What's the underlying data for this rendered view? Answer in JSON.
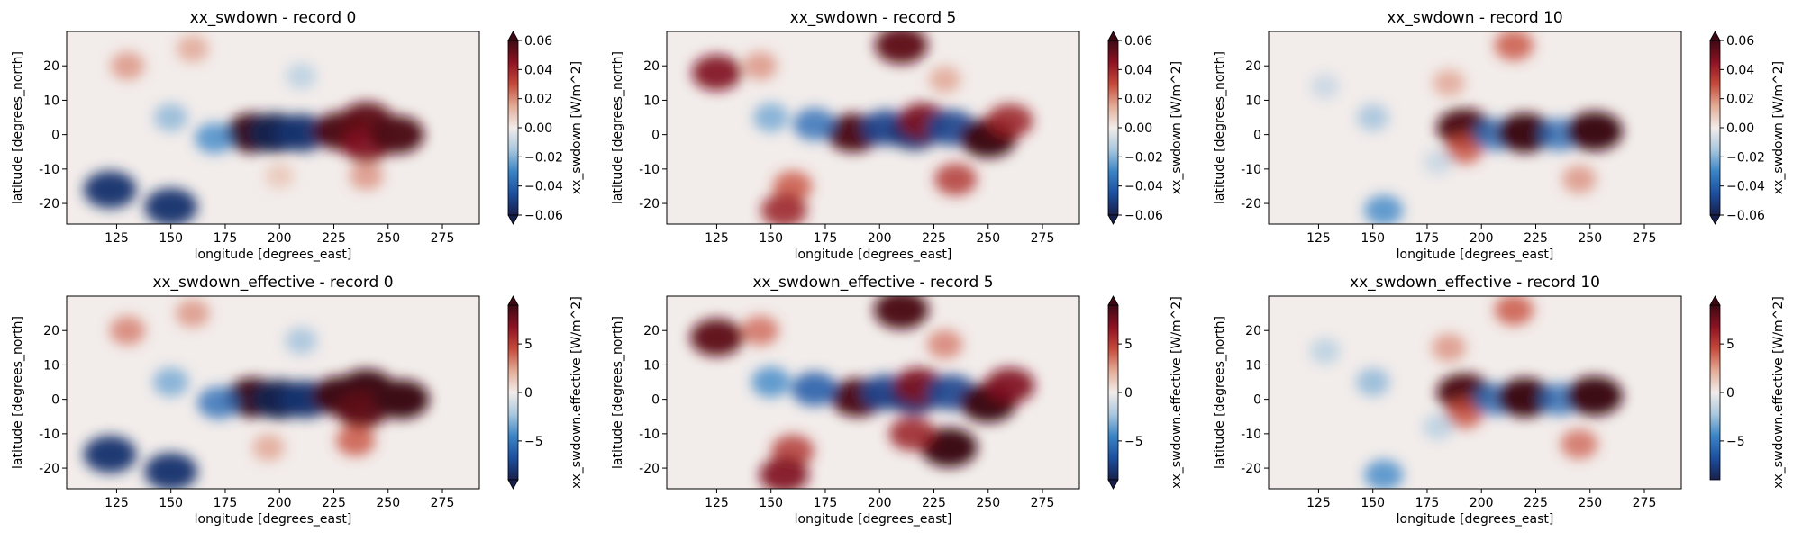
{
  "figure": {
    "colormap": {
      "name": "balance",
      "stops": [
        "#17204c",
        "#1c4fa0",
        "#3a84c6",
        "#a9c8df",
        "#f2ecea",
        "#e3ab95",
        "#c64a3a",
        "#8e1222",
        "#3d0913"
      ],
      "land_color": "#f2ecea"
    }
  },
  "chart_data": [
    {
      "type": "heatmap",
      "title": "xx_swdown - record 0",
      "xlabel": "longitude [degrees_east]",
      "ylabel": "latitude [degrees_north]",
      "xlim": [
        102,
        292
      ],
      "ylim": [
        -26,
        30
      ],
      "xticks": [
        125,
        150,
        175,
        200,
        225,
        250,
        275
      ],
      "yticks": [
        -20,
        -10,
        0,
        10,
        20
      ],
      "colorbar": {
        "label": "xx_swdown [W/m^2]",
        "vmin": -0.06,
        "vmax": 0.06,
        "ticks": [
          "0.06",
          "0.04",
          "0.02",
          "0.00",
          "−0.02",
          "−0.04",
          "−0.06"
        ],
        "extend": "both"
      },
      "grid": false,
      "features": [
        {
          "lon": 188,
          "lat": 0.5,
          "value": 1.0
        },
        {
          "lon": 198,
          "lat": 0.5,
          "value": -1.0
        },
        {
          "lon": 210,
          "lat": 0.5,
          "value": -0.9
        },
        {
          "lon": 228,
          "lat": 1,
          "value": 0.95
        },
        {
          "lon": 240,
          "lat": 4,
          "value": 0.9
        },
        {
          "lon": 240,
          "lat": -3,
          "value": 0.8
        },
        {
          "lon": 254,
          "lat": 0,
          "value": 0.95
        },
        {
          "lon": 170,
          "lat": -1,
          "value": -0.5
        },
        {
          "lon": 150,
          "lat": 5,
          "value": -0.35
        },
        {
          "lon": 240,
          "lat": -12,
          "value": 0.35
        },
        {
          "lon": 130,
          "lat": 20,
          "value": 0.35
        },
        {
          "lon": 160,
          "lat": 25,
          "value": 0.3
        },
        {
          "lon": 210,
          "lat": 17,
          "value": -0.25
        },
        {
          "lon": 122,
          "lat": -16,
          "value": -0.9
        },
        {
          "lon": 150,
          "lat": -21,
          "value": -0.9
        },
        {
          "lon": 200,
          "lat": -12,
          "value": 0.2
        }
      ]
    },
    {
      "type": "heatmap",
      "title": "xx_swdown - record 5",
      "xlabel": "longitude [degrees_east]",
      "ylabel": "latitude [degrees_north]",
      "xlim": [
        102,
        292
      ],
      "ylim": [
        -26,
        30
      ],
      "xticks": [
        125,
        150,
        175,
        200,
        225,
        250,
        275
      ],
      "yticks": [
        -20,
        -10,
        0,
        10,
        20
      ],
      "colorbar": {
        "label": "xx_swdown [W/m^2]",
        "vmin": -0.06,
        "vmax": 0.06,
        "ticks": [
          "0.06",
          "0.04",
          "0.02",
          "0.00",
          "−0.02",
          "−0.04",
          "−0.06"
        ],
        "extend": "both"
      },
      "grid": false,
      "features": [
        {
          "lon": 188,
          "lat": 0.5,
          "value": 0.95
        },
        {
          "lon": 203,
          "lat": 2,
          "value": -0.8
        },
        {
          "lon": 216,
          "lat": 1,
          "value": -0.9
        },
        {
          "lon": 220,
          "lat": 4,
          "value": 0.8
        },
        {
          "lon": 233,
          "lat": 2,
          "value": -0.8
        },
        {
          "lon": 250,
          "lat": -1,
          "value": 1.0
        },
        {
          "lon": 260,
          "lat": 4,
          "value": 0.7
        },
        {
          "lon": 210,
          "lat": 26,
          "value": 0.9
        },
        {
          "lon": 125,
          "lat": 18,
          "value": 0.8
        },
        {
          "lon": 235,
          "lat": -13,
          "value": 0.6
        },
        {
          "lon": 160,
          "lat": -15,
          "value": 0.5
        },
        {
          "lon": 170,
          "lat": 3,
          "value": -0.6
        },
        {
          "lon": 150,
          "lat": 5,
          "value": -0.4
        },
        {
          "lon": 145,
          "lat": 20,
          "value": 0.35
        },
        {
          "lon": 230,
          "lat": 16,
          "value": 0.3
        },
        {
          "lon": 156,
          "lat": -22,
          "value": 0.7
        }
      ]
    },
    {
      "type": "heatmap",
      "title": "xx_swdown - record 10",
      "xlabel": "longitude [degrees_east]",
      "ylabel": "latitude [degrees_north]",
      "xlim": [
        102,
        292
      ],
      "ylim": [
        -26,
        30
      ],
      "xticks": [
        125,
        150,
        175,
        200,
        225,
        250,
        275
      ],
      "yticks": [
        -20,
        -10,
        0,
        10,
        20
      ],
      "colorbar": {
        "label": "xx_swdown [W/m^2]",
        "vmin": -0.06,
        "vmax": 0.06,
        "ticks": [
          "0.06",
          "0.04",
          "0.02",
          "0.00",
          "−0.02",
          "−0.04",
          "−0.06"
        ],
        "extend": "both"
      },
      "grid": false,
      "features": [
        {
          "lon": 192,
          "lat": 2,
          "value": 0.95
        },
        {
          "lon": 192,
          "lat": -4,
          "value": 0.5
        },
        {
          "lon": 206,
          "lat": 0,
          "value": -0.6
        },
        {
          "lon": 220,
          "lat": 0.5,
          "value": 1.0
        },
        {
          "lon": 236,
          "lat": 0,
          "value": -0.6
        },
        {
          "lon": 252,
          "lat": 1,
          "value": 1.0
        },
        {
          "lon": 215,
          "lat": 26,
          "value": 0.5
        },
        {
          "lon": 185,
          "lat": 15,
          "value": 0.3
        },
        {
          "lon": 245,
          "lat": -13,
          "value": 0.35
        },
        {
          "lon": 150,
          "lat": 5,
          "value": -0.3
        },
        {
          "lon": 180,
          "lat": -8,
          "value": -0.2
        },
        {
          "lon": 128,
          "lat": 14,
          "value": -0.2
        },
        {
          "lon": 155,
          "lat": -22,
          "value": -0.5
        }
      ]
    },
    {
      "type": "heatmap",
      "title": "xx_swdown_effective - record 0",
      "xlabel": "longitude [degrees_east]",
      "ylabel": "latitude [degrees_north]",
      "xlim": [
        102,
        292
      ],
      "ylim": [
        -26,
        30
      ],
      "xticks": [
        125,
        150,
        175,
        200,
        225,
        250,
        275
      ],
      "yticks": [
        -20,
        -10,
        0,
        10,
        20
      ],
      "colorbar": {
        "label": "xx_swdown.effective [W/m^2]",
        "vmin": -9,
        "vmax": 9,
        "ticks": [
          "5",
          "0",
          "−5"
        ],
        "tick_values": [
          5,
          0,
          -5
        ],
        "extend": "both"
      },
      "grid": false,
      "features": [
        {
          "lon": 188,
          "lat": 0.5,
          "value": 1.0
        },
        {
          "lon": 200,
          "lat": 0,
          "value": -1.0
        },
        {
          "lon": 212,
          "lat": 0,
          "value": -0.9
        },
        {
          "lon": 228,
          "lat": 1,
          "value": 1.0
        },
        {
          "lon": 240,
          "lat": 3,
          "value": 1.0
        },
        {
          "lon": 238,
          "lat": -3,
          "value": 0.9
        },
        {
          "lon": 256,
          "lat": 0,
          "value": 1.0
        },
        {
          "lon": 172,
          "lat": -1,
          "value": -0.6
        },
        {
          "lon": 150,
          "lat": 5,
          "value": -0.4
        },
        {
          "lon": 235,
          "lat": -12,
          "value": 0.5
        },
        {
          "lon": 130,
          "lat": 20,
          "value": 0.4
        },
        {
          "lon": 160,
          "lat": 25,
          "value": 0.35
        },
        {
          "lon": 210,
          "lat": 17,
          "value": -0.3
        },
        {
          "lon": 122,
          "lat": -16,
          "value": -0.9
        },
        {
          "lon": 150,
          "lat": -21,
          "value": -0.9
        },
        {
          "lon": 195,
          "lat": -14,
          "value": 0.3
        }
      ]
    },
    {
      "type": "heatmap",
      "title": "xx_swdown_effective - record 5",
      "xlabel": "longitude [degrees_east]",
      "ylabel": "latitude [degrees_north]",
      "xlim": [
        102,
        292
      ],
      "ylim": [
        -26,
        30
      ],
      "xticks": [
        125,
        150,
        175,
        200,
        225,
        250,
        275
      ],
      "yticks": [
        -20,
        -10,
        0,
        10,
        20
      ],
      "colorbar": {
        "label": "xx_swdown.effective [W/m^2]",
        "vmin": -9,
        "vmax": 9,
        "ticks": [
          "5",
          "0",
          "−5"
        ],
        "tick_values": [
          5,
          0,
          -5
        ],
        "extend": "both"
      },
      "grid": false,
      "features": [
        {
          "lon": 190,
          "lat": 0.5,
          "value": 0.95
        },
        {
          "lon": 203,
          "lat": 2,
          "value": -0.8
        },
        {
          "lon": 216,
          "lat": 1,
          "value": -0.9
        },
        {
          "lon": 218,
          "lat": 4,
          "value": 0.8
        },
        {
          "lon": 233,
          "lat": 2,
          "value": -0.8
        },
        {
          "lon": 250,
          "lat": -1,
          "value": 1.0
        },
        {
          "lon": 260,
          "lat": 4,
          "value": 0.8
        },
        {
          "lon": 210,
          "lat": 26,
          "value": 0.95
        },
        {
          "lon": 125,
          "lat": 18,
          "value": 0.9
        },
        {
          "lon": 232,
          "lat": -14,
          "value": 1.0
        },
        {
          "lon": 215,
          "lat": -10,
          "value": 0.7
        },
        {
          "lon": 160,
          "lat": -15,
          "value": 0.6
        },
        {
          "lon": 170,
          "lat": 3,
          "value": -0.7
        },
        {
          "lon": 150,
          "lat": 5,
          "value": -0.5
        },
        {
          "lon": 145,
          "lat": 20,
          "value": 0.45
        },
        {
          "lon": 230,
          "lat": 16,
          "value": 0.4
        },
        {
          "lon": 156,
          "lat": -22,
          "value": 0.8
        }
      ]
    },
    {
      "type": "heatmap",
      "title": "xx_swdown_effective - record 10",
      "xlabel": "longitude [degrees_east]",
      "ylabel": "latitude [degrees_north]",
      "xlim": [
        102,
        292
      ],
      "ylim": [
        -26,
        30
      ],
      "xticks": [
        125,
        150,
        175,
        200,
        225,
        250,
        275
      ],
      "yticks": [
        -20,
        -10,
        0,
        10,
        20
      ],
      "colorbar": {
        "label": "xx_swdown.effective [W/m^2]",
        "vmin": -9,
        "vmax": 9,
        "ticks": [
          "5",
          "0",
          "−5"
        ],
        "tick_values": [
          5,
          0,
          -5
        ],
        "extend": "max"
      },
      "grid": false,
      "features": [
        {
          "lon": 192,
          "lat": 2,
          "value": 0.95
        },
        {
          "lon": 192,
          "lat": -4,
          "value": 0.5
        },
        {
          "lon": 206,
          "lat": 0,
          "value": -0.6
        },
        {
          "lon": 220,
          "lat": 0.5,
          "value": 1.0
        },
        {
          "lon": 236,
          "lat": 0,
          "value": -0.6
        },
        {
          "lon": 252,
          "lat": 1,
          "value": 1.0
        },
        {
          "lon": 215,
          "lat": 26,
          "value": 0.5
        },
        {
          "lon": 185,
          "lat": 15,
          "value": 0.35
        },
        {
          "lon": 245,
          "lat": -13,
          "value": 0.45
        },
        {
          "lon": 150,
          "lat": 5,
          "value": -0.35
        },
        {
          "lon": 180,
          "lat": -8,
          "value": -0.25
        },
        {
          "lon": 128,
          "lat": 14,
          "value": -0.25
        },
        {
          "lon": 155,
          "lat": -22,
          "value": -0.5
        }
      ]
    }
  ]
}
